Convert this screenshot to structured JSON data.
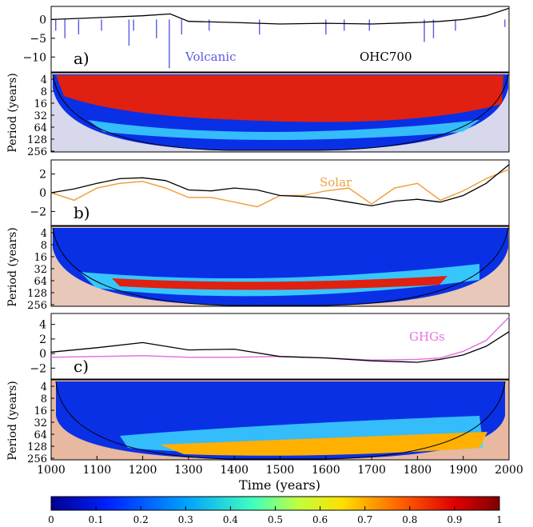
{
  "chart_data": [
    {
      "type": "line",
      "panel_label": "a)",
      "series": [
        {
          "name": "Volcanic",
          "color": "#5a5ae6"
        },
        {
          "name": "OHC700",
          "color": "#000000"
        }
      ],
      "x": [
        1000,
        1100,
        1200,
        1260,
        1300,
        1400,
        1500,
        1600,
        1700,
        1800,
        1850,
        1900,
        1950,
        2000
      ],
      "ohc700": [
        0,
        0.5,
        1.0,
        1.5,
        -0.5,
        -0.8,
        -1.2,
        -1.0,
        -1.2,
        -0.8,
        -0.5,
        0,
        1,
        3
      ],
      "volcanic_spikes": [
        {
          "x": 1010,
          "y": -3
        },
        {
          "x": 1030,
          "y": -5
        },
        {
          "x": 1060,
          "y": -4
        },
        {
          "x": 1110,
          "y": -3
        },
        {
          "x": 1170,
          "y": -7
        },
        {
          "x": 1180,
          "y": -3
        },
        {
          "x": 1230,
          "y": -5
        },
        {
          "x": 1258,
          "y": -13
        },
        {
          "x": 1285,
          "y": -4
        },
        {
          "x": 1345,
          "y": -3
        },
        {
          "x": 1455,
          "y": -4
        },
        {
          "x": 1600,
          "y": -4
        },
        {
          "x": 1640,
          "y": -3
        },
        {
          "x": 1695,
          "y": -3
        },
        {
          "x": 1815,
          "y": -6
        },
        {
          "x": 1835,
          "y": -5
        },
        {
          "x": 1883,
          "y": -3
        },
        {
          "x": 1991,
          "y": -2
        }
      ],
      "yticks": [
        0,
        -5,
        -10
      ],
      "ylim": [
        -14,
        3.5
      ],
      "labels": {
        "volcanic": "Volcanic",
        "ohc": "OHC700"
      }
    },
    {
      "type": "line",
      "panel_label": "b)",
      "series": [
        {
          "name": "Solar",
          "color": "#f0a040"
        },
        {
          "name": "OHC700",
          "color": "#000000"
        }
      ],
      "x": [
        1000,
        1050,
        1100,
        1150,
        1200,
        1250,
        1300,
        1350,
        1400,
        1450,
        1500,
        1550,
        1600,
        1650,
        1700,
        1750,
        1800,
        1850,
        1900,
        1950,
        2000
      ],
      "solar": [
        0,
        -0.8,
        0.5,
        1.0,
        1.2,
        0.5,
        -0.5,
        -0.5,
        -1.0,
        -1.5,
        -0.3,
        -0.3,
        0.2,
        0.5,
        -1.2,
        0.5,
        1.0,
        -0.8,
        0.2,
        1.5,
        2.5
      ],
      "ohc700": [
        0,
        0.4,
        1.0,
        1.5,
        1.6,
        1.3,
        0.3,
        0.2,
        0.5,
        0.3,
        -0.3,
        -0.4,
        -0.6,
        -1.0,
        -1.4,
        -0.9,
        -0.7,
        -1.0,
        -0.3,
        1.0,
        3.0
      ],
      "yticks": [
        2,
        0,
        -2
      ],
      "ylim": [
        -3.5,
        3.5
      ],
      "labels": {
        "solar": "Solar"
      }
    },
    {
      "type": "line",
      "panel_label": "c)",
      "series": [
        {
          "name": "GHGs",
          "color": "#e673e6"
        },
        {
          "name": "OHC700",
          "color": "#000000"
        }
      ],
      "x": [
        1000,
        1100,
        1200,
        1300,
        1400,
        1500,
        1600,
        1700,
        1800,
        1850,
        1900,
        1950,
        2000
      ],
      "ghgs": [
        -0.5,
        -0.4,
        -0.3,
        -0.5,
        -0.5,
        -0.4,
        -0.6,
        -0.9,
        -0.8,
        -0.6,
        0.3,
        1.8,
        5.0
      ],
      "ohc700": [
        0.2,
        0.8,
        1.5,
        0.5,
        0.6,
        -0.4,
        -0.6,
        -1.0,
        -1.2,
        -0.8,
        -0.2,
        1.0,
        3.0
      ],
      "yticks": [
        4,
        2,
        0,
        -2
      ],
      "ylim": [
        -3.5,
        5.5
      ],
      "labels": {
        "ghgs": "GHGs"
      }
    }
  ],
  "wavelet_axis": {
    "ylabel": "Period (years)",
    "yticks": [
      "4",
      "8",
      "16",
      "32",
      "64",
      "128",
      "256"
    ]
  },
  "x_axis": {
    "label": "Time (years)",
    "ticks": [
      1000,
      1100,
      1200,
      1300,
      1400,
      1500,
      1600,
      1700,
      1800,
      1900,
      2000
    ],
    "range": [
      1000,
      2000
    ]
  },
  "colorbar": {
    "ticks": [
      "0",
      "0.1",
      "0.2",
      "0.3",
      "0.4",
      "0.5",
      "0.6",
      "0.7",
      "0.8",
      "0.9",
      "1"
    ],
    "colors": [
      "#00008f",
      "#0020ff",
      "#00a0ff",
      "#40ffbf",
      "#bfff40",
      "#ffdf00",
      "#ff6000",
      "#df0000",
      "#800000"
    ]
  }
}
